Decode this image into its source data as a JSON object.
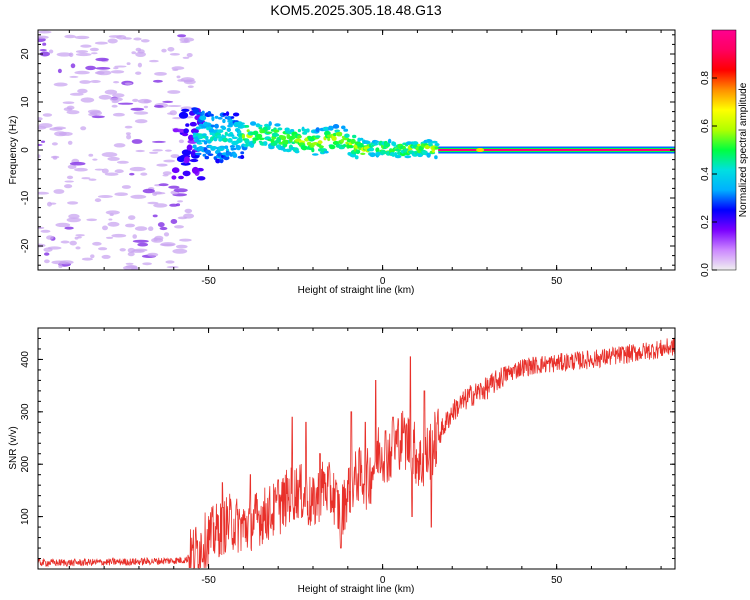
{
  "figure_title": "KOM5.2025.305.18.48.G13",
  "colors": {
    "snr_line": "#e8302a",
    "axis": "#000000",
    "dot_light": "#c9a6f0",
    "dot_dark": "#8a3ce6"
  },
  "chart_data": [
    {
      "type": "heatmap",
      "title": "KOM5.2025.305.18.48.G13",
      "xlabel": "Height of straight line (km)",
      "ylabel": "Frequency (Hz)",
      "xlim": [
        -99,
        84
      ],
      "ylim": [
        -25,
        25
      ],
      "xticks": [
        -50,
        0,
        50
      ],
      "yticks": [
        -20,
        -10,
        0,
        10,
        20
      ],
      "colorbar": {
        "label": "Normalized spectral amplitude",
        "lim": [
          0,
          1
        ],
        "ticks": [
          "0.0",
          "0.2",
          "0.4",
          "0.6",
          "0.8"
        ],
        "tick_values": [
          0,
          0.2,
          0.4,
          0.6,
          0.8
        ],
        "colormap": [
          "#f0f0f0",
          "#cc88ff",
          "#7a00ff",
          "#0000ff",
          "#00b0ff",
          "#00e0e0",
          "#00ff40",
          "#b0ff00",
          "#ffff00",
          "#ff9000",
          "#ff0000",
          "#ff0060",
          "#ff0090"
        ]
      },
      "ridge": [
        {
          "x": -54,
          "y": 4
        },
        {
          "x": -48,
          "y": 2.5
        },
        {
          "x": -42,
          "y": 2.8
        },
        {
          "x": -35,
          "y": 3.5
        },
        {
          "x": -28,
          "y": 2.5
        },
        {
          "x": -20,
          "y": 1.5
        },
        {
          "x": -12,
          "y": 2.5
        },
        {
          "x": -6,
          "y": 0
        },
        {
          "x": 0,
          "y": 0.5
        },
        {
          "x": 6,
          "y": 0
        },
        {
          "x": 12,
          "y": 0.5
        },
        {
          "x": 16,
          "y": 0
        },
        {
          "x": 84,
          "y": 0
        }
      ],
      "noise_region_x": [
        -99,
        -55
      ]
    },
    {
      "type": "line",
      "title": "",
      "xlabel": "Height of straight line (km)",
      "ylabel": "SNR (v/v)",
      "xlim": [
        -99,
        84
      ],
      "ylim": [
        0,
        460
      ],
      "xticks": [
        -50,
        0,
        50
      ],
      "yticks": [
        100,
        200,
        300,
        400
      ],
      "series": [
        {
          "name": "SNR",
          "x": [
            -99,
            -90,
            -80,
            -70,
            -60,
            -56,
            -53,
            -50,
            -47,
            -44,
            -40,
            -35,
            -30,
            -27,
            -24,
            -20,
            -17,
            -14,
            -12,
            -10,
            -7,
            -4,
            -1,
            2,
            5,
            8,
            11,
            14,
            17,
            20,
            25,
            30,
            35,
            40,
            45,
            50,
            55,
            60,
            65,
            70,
            75,
            80,
            84
          ],
          "values": [
            12,
            12,
            13,
            14,
            16,
            18,
            40,
            60,
            75,
            90,
            80,
            100,
            115,
            140,
            150,
            120,
            160,
            140,
            100,
            150,
            180,
            170,
            230,
            220,
            250,
            240,
            200,
            230,
            265,
            300,
            330,
            345,
            370,
            385,
            390,
            393,
            397,
            400,
            405,
            410,
            415,
            420,
            425
          ],
          "spikes": [
            {
              "x": -46,
              "y": 165
            },
            {
              "x": -38,
              "y": 180
            },
            {
              "x": -30,
              "y": 170
            },
            {
              "x": -26,
              "y": 290
            },
            {
              "x": -22,
              "y": 280
            },
            {
              "x": -18,
              "y": 220
            },
            {
              "x": -12,
              "y": 40
            },
            {
              "x": -9,
              "y": 300
            },
            {
              "x": -5,
              "y": 280
            },
            {
              "x": -2,
              "y": 360
            },
            {
              "x": 3,
              "y": 290
            },
            {
              "x": 6,
              "y": 260
            },
            {
              "x": 8,
              "y": 405
            },
            {
              "x": 8.5,
              "y": 100
            },
            {
              "x": 12,
              "y": 340
            },
            {
              "x": 14,
              "y": 80
            }
          ]
        }
      ]
    }
  ]
}
